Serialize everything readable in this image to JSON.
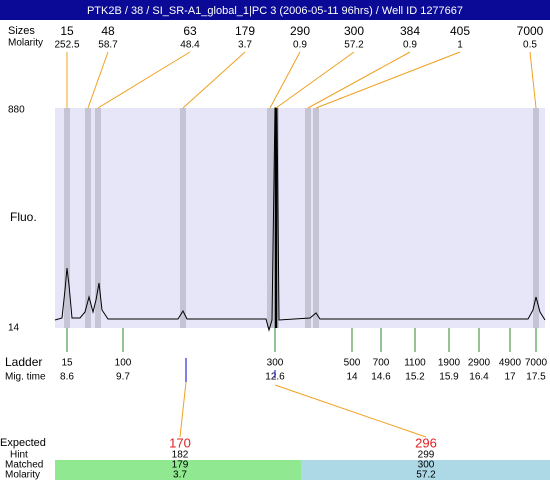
{
  "title": "PTK2B / 38 / SI_SR-A1_global_1|PC 3 (2006-05-11 96hrs) / Well ID 1277667",
  "peaks": {
    "row_labels": [
      "Sizes",
      "Molarity"
    ],
    "sizes": [
      15,
      48,
      63,
      179,
      290,
      300,
      384,
      405,
      7000
    ],
    "molarity": [
      252.5,
      58.7,
      48.4,
      3.7,
      0.9,
      57.2,
      0.9,
      1,
      0.5
    ]
  },
  "axis": {
    "top": 880,
    "bottom": 14,
    "label": "Fluo."
  },
  "ladder": {
    "row_labels": [
      "Ladder",
      "Mig. time"
    ],
    "sizes": [
      15,
      100,
      300,
      500,
      700,
      1100,
      1900,
      2900,
      4900,
      7000
    ],
    "mig_times": [
      8.6,
      9.7,
      12.6,
      14,
      14.6,
      15.2,
      15.9,
      16.4,
      17,
      17.5
    ]
  },
  "expected": {
    "row_labels": [
      "Expected",
      "Hint",
      "Matched",
      "Molarity"
    ],
    "expected": [
      170,
      296
    ],
    "hint": [
      182,
      299
    ],
    "matched": [
      179,
      300
    ],
    "molarity": [
      3.7,
      57.2
    ]
  }
}
